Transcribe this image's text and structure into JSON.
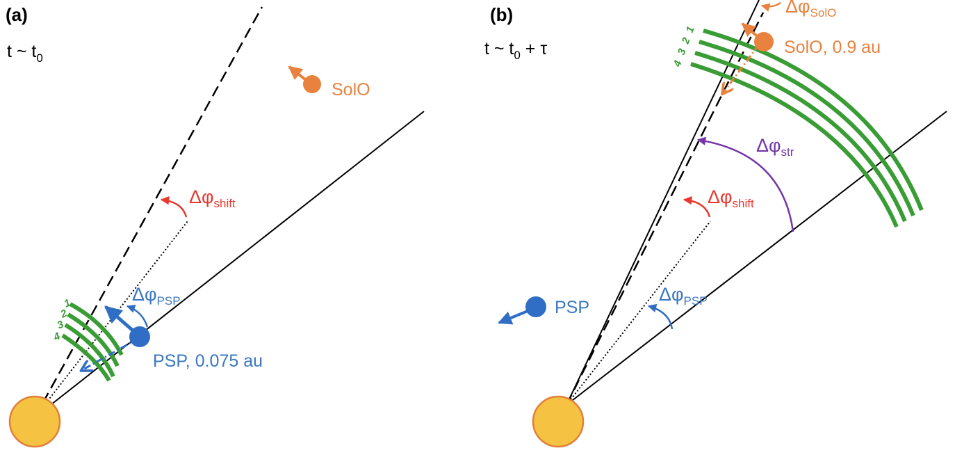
{
  "colors": {
    "sun_fill": "#f5c242",
    "sun_stroke": "#e27f3a",
    "psp": "#2f6ec4",
    "psp_text": "#3a78c2",
    "solo": "#e8823e",
    "shift": "#e8392f",
    "str": "#7236a8",
    "streamer": "#3a9c35",
    "line": "#000000"
  },
  "panel_a": {
    "label": "(a)",
    "time": {
      "t": "t ~ t",
      "sub": "0",
      "suffix": ""
    },
    "psp_label": "PSP, 0.075 au",
    "solo_label": "SolO",
    "dphi_psp": {
      "main": "Δφ",
      "sub": "PSP"
    },
    "dphi_shift": {
      "main": "Δφ",
      "sub": "shift"
    },
    "arc_numbers": [
      "1",
      "2",
      "3",
      "4"
    ]
  },
  "panel_b": {
    "label": "(b)",
    "time": {
      "t": "t ~ t",
      "sub": "0",
      "suffix": " + τ"
    },
    "psp_label": "PSP",
    "solo_label": "SolO, 0.9 au",
    "dphi_psp": {
      "main": "Δφ",
      "sub": "PSP"
    },
    "dphi_shift": {
      "main": "Δφ",
      "sub": "shift"
    },
    "dphi_str": {
      "main": "Δφ",
      "sub": "str"
    },
    "dphi_solo": {
      "main": "Δφ",
      "sub": "SolO"
    },
    "arc_numbers": [
      "1",
      "2",
      "3",
      "4"
    ]
  }
}
